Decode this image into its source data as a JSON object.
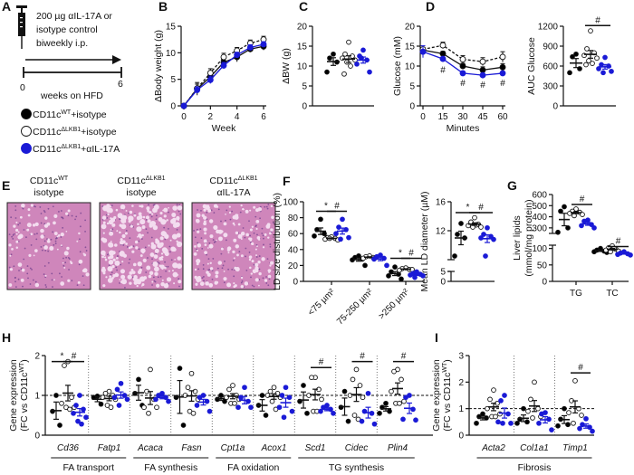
{
  "colors": {
    "wt": "#000000",
    "lkb1_isotype": "#ffffff",
    "lkb1_anti": "#1a1ad6",
    "histology_base": "#cf86bb"
  },
  "panel_letters": [
    "A",
    "B",
    "C",
    "D",
    "E",
    "F",
    "G",
    "H",
    "I"
  ],
  "panel_a": {
    "icon": "syringe-icon",
    "dose_lines": [
      "200 µg αIL-17A or",
      "isotype control",
      "biweekly i.p."
    ],
    "timeline_start": "0",
    "timeline_end": "6",
    "timeline_label": "weeks on HFD",
    "legend": [
      {
        "base": "CD11c",
        "sup": "WT",
        "rest": "+isotype",
        "marker": "filled-black"
      },
      {
        "base": "CD11c",
        "sup": "ΔLKB1",
        "rest": "+isotype",
        "marker": "open"
      },
      {
        "base": "CD11c",
        "sup": "ΔLKB1",
        "rest": "+αIL-17A",
        "marker": "filled-blue"
      }
    ]
  },
  "panel_e": {
    "images": [
      {
        "line1": "CD11c",
        "sup": "WT",
        "line2": "isotype"
      },
      {
        "line1": "CD11c",
        "sup": "ΔLKB1",
        "line2": "isotype"
      },
      {
        "line1": "CD11c",
        "sup": "ΔLKB1",
        "line2": "αIL-17A"
      }
    ]
  },
  "chart_data": [
    {
      "id": "B",
      "type": "line",
      "xlabel": "Week",
      "ylabel": "ΔBody weight (g)",
      "x": [
        0,
        1,
        2,
        3,
        4,
        5,
        6
      ],
      "xticks": [
        "0",
        "2",
        "4",
        "6"
      ],
      "ylim": [
        0,
        15
      ],
      "yticks": [
        "0",
        "5",
        "10",
        "15"
      ],
      "series": [
        {
          "group": "wt",
          "values": [
            0,
            3.2,
            5.5,
            8.2,
            9.2,
            10.7,
            11.2
          ],
          "sem": [
            0,
            1.2,
            0.9,
            0.8,
            0.9,
            0.6,
            0.7
          ]
        },
        {
          "group": "lkb1_isotype",
          "values": [
            0,
            3.3,
            6.2,
            9.2,
            10.4,
            11.8,
            12.5
          ],
          "sem": [
            0,
            0.8,
            0.8,
            0.7,
            0.6,
            0.6,
            0.6
          ],
          "dashed": true
        },
        {
          "group": "lkb1_anti",
          "values": [
            0,
            3.0,
            4.9,
            7.6,
            9.6,
            11.0,
            11.6
          ],
          "sem": [
            0,
            0.6,
            0.7,
            0.6,
            0.5,
            0.5,
            0.5
          ]
        }
      ]
    },
    {
      "id": "C",
      "type": "scatter",
      "ylabel": "ΔBW (g)",
      "ylim": [
        0,
        20
      ],
      "yticks": [
        "0",
        "5",
        "10",
        "15",
        "20"
      ],
      "groups": [
        {
          "group": "wt",
          "points": [
            13,
            12,
            11,
            8.5
          ]
        },
        {
          "group": "lkb1_isotype",
          "points": [
            16,
            13,
            12.5,
            12,
            11.5,
            11,
            10,
            8
          ]
        },
        {
          "group": "lkb1_anti",
          "points": [
            14,
            12.5,
            11.5,
            10.5,
            8.5,
            12
          ]
        }
      ]
    },
    {
      "id": "D",
      "type": "line",
      "xlabel": "Minutes",
      "ylabel": "Glucose (mM)",
      "x": [
        0,
        15,
        30,
        45,
        60
      ],
      "xticks": [
        "0",
        "15",
        "30",
        "45",
        "60"
      ],
      "ylim": [
        0,
        20
      ],
      "yticks": [
        "0",
        "5",
        "10",
        "15",
        "20"
      ],
      "series": [
        {
          "group": "wt",
          "values": [
            14,
            13.1,
            10,
            9,
            9.7
          ],
          "sem": [
            0.6,
            0.6,
            0.7,
            0.8,
            0.9
          ]
        },
        {
          "group": "lkb1_isotype",
          "values": [
            14.2,
            15.2,
            11.7,
            11.1,
            12.3
          ],
          "sem": [
            0.5,
            0.8,
            0.9,
            1.0,
            1.3
          ],
          "dashed": true
        },
        {
          "group": "lkb1_anti",
          "values": [
            13.6,
            11.8,
            8.2,
            7.7,
            8.2
          ],
          "sem": [
            1.5,
            0.5,
            0.5,
            0.4,
            0.4
          ]
        }
      ],
      "annotations": [
        {
          "x": 15,
          "y": 8.3,
          "label": "#"
        },
        {
          "x": 30,
          "y": 5,
          "label": "#"
        },
        {
          "x": 45,
          "y": 4.5,
          "label": "#"
        },
        {
          "x": 60,
          "y": 5,
          "label": "#"
        }
      ]
    },
    {
      "id": "D2",
      "type": "scatter",
      "ylabel": "AUC Glucose",
      "ylim": [
        0,
        1200
      ],
      "yticks": [
        "0",
        "300",
        "600",
        "900",
        "1200"
      ],
      "groups": [
        {
          "group": "wt",
          "points": [
            780,
            740,
            560,
            500
          ]
        },
        {
          "group": "lkb1_isotype",
          "points": [
            1130,
            860,
            800,
            760,
            720,
            680,
            640,
            620
          ]
        },
        {
          "group": "lkb1_anti",
          "points": [
            730,
            620,
            600,
            560,
            520,
            500
          ]
        }
      ],
      "significance": [
        {
          "from": 1,
          "to": 2,
          "y": 1210,
          "label": "#"
        }
      ]
    },
    {
      "id": "F",
      "type": "scatter",
      "ylabel": "LD size distribution (%)",
      "ylim": [
        0,
        100
      ],
      "yticks": [
        "0",
        "20",
        "40",
        "60",
        "80",
        "100"
      ],
      "categories": [
        "<75 µm²",
        "75-250 µm²",
        ">250 µm²"
      ],
      "category_groups": [
        [
          {
            "group": "wt",
            "points": [
              78,
              65,
              60,
              57,
              55
            ]
          },
          {
            "group": "lkb1_isotype",
            "points": [
              56,
              55,
              54,
              53,
              52,
              54
            ]
          },
          {
            "group": "lkb1_anti",
            "points": [
              78,
              68,
              65,
              60,
              55,
              53
            ]
          }
        ],
        [
          {
            "group": "wt",
            "points": [
              32,
              30,
              28,
              27,
              20
            ]
          },
          {
            "group": "lkb1_isotype",
            "points": [
              32,
              31,
              30,
              29,
              30
            ]
          },
          {
            "group": "lkb1_anti",
            "points": [
              33,
              31,
              29,
              28,
              20
            ]
          }
        ],
        [
          {
            "group": "wt",
            "points": [
              18,
              12,
              9,
              7,
              3
            ]
          },
          {
            "group": "lkb1_isotype",
            "points": [
              17,
              16,
              15,
              14,
              15
            ]
          },
          {
            "group": "lkb1_anti",
            "points": [
              12,
              10,
              9,
              8,
              7,
              5
            ]
          }
        ]
      ],
      "significance": [
        {
          "category": 0,
          "from": 0,
          "to": 1,
          "y": 88,
          "label": "*"
        },
        {
          "category": 0,
          "from": 1,
          "to": 2,
          "y": 88,
          "label": "#"
        },
        {
          "category": 2,
          "from": 0,
          "to": 1,
          "y": 29,
          "label": "*"
        },
        {
          "category": 2,
          "from": 1,
          "to": 2,
          "y": 29,
          "label": "#"
        }
      ]
    },
    {
      "id": "F2",
      "type": "scatter",
      "ylabel": "Mean LD diameter (µM)",
      "ylim": [
        0,
        16
      ],
      "ybreak": [
        5,
        8
      ],
      "yticks": [
        "0",
        "5",
        "12",
        "16"
      ],
      "groups": [
        {
          "group": "wt",
          "points": [
            13,
            11.5,
            11,
            8.5
          ]
        },
        {
          "group": "lkb1_isotype",
          "points": [
            13.8,
            13.2,
            12.9,
            12.7,
            12.5,
            12.5,
            12.8
          ]
        },
        {
          "group": "lkb1_anti",
          "points": [
            12.4,
            11.5,
            11.2,
            11,
            10.8,
            8.5
          ]
        }
      ],
      "significance": [
        {
          "from": 0,
          "to": 1,
          "y": 14.5,
          "label": "*"
        },
        {
          "from": 1,
          "to": 2,
          "y": 14.5,
          "label": "#"
        }
      ]
    },
    {
      "id": "G",
      "type": "scatter",
      "ylabel": "Liver lipids",
      "ylabel2": "(mmol/mg protein)",
      "ylim": [
        0,
        600
      ],
      "ybreak": [
        110,
        250
      ],
      "yticks": [
        "0",
        "50",
        "100",
        "300",
        "400",
        "500",
        "600"
      ],
      "categories": [
        "TG",
        "TC"
      ],
      "category_groups": [
        [
          {
            "group": "wt",
            "points": [
              490,
              450,
              300,
              260
            ]
          },
          {
            "group": "lkb1_isotype",
            "points": [
              470,
              450,
              440,
              430,
              420,
              410
            ]
          },
          {
            "group": "lkb1_anti",
            "points": [
              370,
              360,
              330,
              320,
              300
            ]
          }
        ],
        [
          {
            "group": "wt",
            "points": [
              100,
              95,
              92,
              90,
              88
            ]
          },
          {
            "group": "lkb1_isotype",
            "points": [
              108,
              102,
              98,
              95,
              92,
              90,
              100
            ]
          },
          {
            "group": "lkb1_anti",
            "points": [
              90,
              86,
              84,
              82,
              80
            ]
          }
        ]
      ],
      "significance": [
        {
          "category": 0,
          "from": 1,
          "to": 2,
          "y": 510,
          "label": "#"
        },
        {
          "category": 1,
          "from": 1,
          "to": 2,
          "y": 106,
          "label": "#"
        }
      ]
    },
    {
      "id": "H",
      "type": "scatter",
      "ylabel": "Gene expression",
      "ylabel2_base": "(FC vs CD11c",
      "ylabel2_sup": "WT",
      "ylabel2_end": ")",
      "ylim": [
        0,
        2
      ],
      "yticks": [
        "0",
        "1",
        "2"
      ],
      "reference_line": 1,
      "genes": [
        "Cd36",
        "Fatp1",
        "Acaca",
        "Fasn",
        "Cpt1a",
        "Acox1",
        "Scd1",
        "Cidec",
        "Plin4"
      ],
      "gene_categories": [
        {
          "label": "FA transport",
          "genes": [
            0,
            1
          ]
        },
        {
          "label": "FA synthesis",
          "genes": [
            2,
            3
          ]
        },
        {
          "label": "FA oxidation",
          "genes": [
            4,
            5
          ]
        },
        {
          "label": "TG synthesis",
          "genes": [
            6,
            8
          ]
        }
      ],
      "gene_groups": [
        [
          [
            1.0,
            0.6,
            0.25
          ],
          [
            1.85,
            1.75,
            0.95,
            0.8,
            0.7,
            0.7,
            0.65
          ],
          [
            1.0,
            0.75,
            0.65,
            0.55,
            0.45,
            0.35,
            0.28
          ]
        ],
        [
          [
            0.98,
            0.95,
            0.78
          ],
          [
            1.1,
            1.05,
            1.0,
            0.95,
            0.9,
            0.75,
            0.7
          ],
          [
            1.3,
            1.15,
            1.0,
            0.95,
            0.9,
            0.75
          ]
        ],
        [
          [
            1.4,
            1.05,
            0.75
          ],
          [
            1.65,
            1.1,
            0.9,
            0.7,
            0.7,
            0.55
          ],
          [
            1.05,
            1.0,
            0.95,
            0.9,
            0.85
          ]
        ],
        [
          [
            1.68,
            0.95,
            0.25
          ],
          [
            1.55,
            1.2,
            1.1,
            1.0,
            0.9,
            0.6,
            0.55
          ],
          [
            1.0,
            0.95,
            0.85,
            0.75,
            0.6
          ]
        ],
        [
          [
            1.0,
            0.9,
            0.85
          ],
          [
            1.25,
            1.15,
            1.0,
            0.95,
            0.9,
            0.8,
            0.8
          ],
          [
            1.2,
            0.95,
            0.85,
            0.7,
            0.7
          ]
        ],
        [
          [
            1.0,
            0.75,
            0.5
          ],
          [
            1.2,
            1.1,
            1.05,
            1.0,
            0.95,
            0.85,
            0.65
          ],
          [
            1.2,
            1.0,
            0.95,
            0.7,
            0.6,
            0.45
          ]
        ],
        [
          [
            1.25,
            0.85,
            0.55
          ],
          [
            1.45,
            1.45,
            1.15,
            1.0,
            0.9,
            0.6,
            0.6
          ],
          [
            0.75,
            0.7,
            0.65,
            0.6,
            0.55
          ]
        ],
        [
          [
            1.1,
            0.7,
            0.35
          ],
          [
            1.65,
            1.4,
            1.25,
            1.0,
            0.95,
            0.5,
            0.4
          ],
          [
            1.05,
            0.6,
            0.55,
            0.35,
            0.28
          ]
        ],
        [
          [
            0.8,
            0.7,
            0.6,
            0.55
          ],
          [
            1.65,
            1.6,
            1.4,
            1.1,
            0.85,
            0.8,
            0.8
          ],
          [
            1.0,
            0.95,
            0.65,
            0.4,
            0.38
          ]
        ]
      ],
      "significance": [
        {
          "gene": 0,
          "from": 0,
          "to": 1,
          "y": 1.85,
          "label": "*"
        },
        {
          "gene": 0,
          "from": 1,
          "to": 2,
          "y": 1.85,
          "label": "#"
        },
        {
          "gene": 6,
          "from": 1,
          "to": 2,
          "y": 1.7,
          "label": "#"
        },
        {
          "gene": 7,
          "from": 1,
          "to": 2,
          "y": 1.85,
          "label": "#"
        },
        {
          "gene": 8,
          "from": 1,
          "to": 2,
          "y": 1.85,
          "label": "#"
        }
      ]
    },
    {
      "id": "I",
      "type": "scatter",
      "ylabel": "Gene expression",
      "ylabel2_base": "(FC vs CD11c",
      "ylabel2_sup": "WT",
      "ylabel2_end": ")",
      "ylim": [
        0,
        3
      ],
      "yticks": [
        "0",
        "1",
        "2",
        "3"
      ],
      "reference_line": 1,
      "genes": [
        "Acta2",
        "Col1a1",
        "Timp1"
      ],
      "gene_categories": [
        {
          "label": "Fibrosis",
          "genes": [
            0,
            2
          ]
        }
      ],
      "gene_groups": [
        [
          [
            0.8,
            0.7,
            0.65,
            0.45
          ],
          [
            1.7,
            1.35,
            1.2,
            1.0,
            0.8,
            0.7,
            0.7
          ],
          [
            1.5,
            1.3,
            0.8,
            0.5,
            0.45,
            0.45
          ]
        ],
        [
          [
            1.0,
            0.6,
            0.5,
            0.45
          ],
          [
            2.0,
            1.35,
            1.0,
            0.9,
            0.7,
            0.65
          ],
          [
            0.85,
            0.8,
            0.6,
            0.45,
            0.2
          ]
        ],
        [
          [
            1.0,
            0.6,
            0.4,
            0.35
          ],
          [
            2.05,
            1.3,
            1.0,
            0.85,
            0.75,
            0.45
          ],
          [
            0.62,
            0.4,
            0.3,
            0.25,
            0.15
          ]
        ]
      ],
      "significance": [
        {
          "gene": 2,
          "from": 1,
          "to": 2,
          "y": 2.35,
          "label": "#"
        }
      ]
    }
  ]
}
